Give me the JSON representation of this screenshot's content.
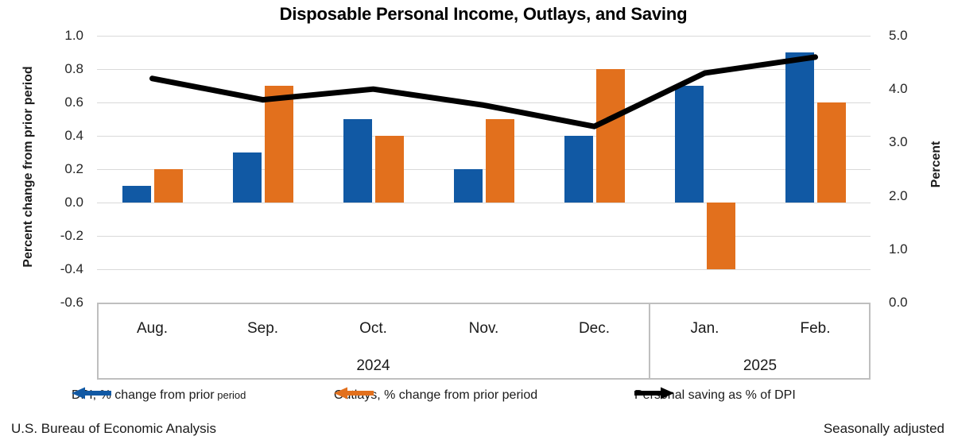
{
  "title": "Disposable Personal Income, Outlays, and Saving",
  "left_axis": {
    "title": "Percent change from prior period",
    "ticks": [
      "1.0",
      "0.8",
      "0.6",
      "0.4",
      "0.2",
      "0.0",
      "-0.2",
      "-0.4",
      "-0.6"
    ],
    "min": -0.6,
    "max": 1.0
  },
  "right_axis": {
    "title": "Percent",
    "ticks": [
      "5.0",
      "4.0",
      "3.0",
      "2.0",
      "1.0",
      "0.0"
    ],
    "min": 0.0,
    "max": 5.0
  },
  "chart_data": {
    "type": "bar+line",
    "categories": [
      "Aug.",
      "Sep.",
      "Oct.",
      "Nov.",
      "Dec.",
      "Jan.",
      "Feb."
    ],
    "year_groups": [
      {
        "label": "2024",
        "span": 5
      },
      {
        "label": "2025",
        "span": 2
      }
    ],
    "series": [
      {
        "name": "DPI, % change from prior period",
        "type": "bar",
        "axis": "left",
        "color": "#1159a4",
        "values": [
          0.1,
          0.3,
          0.5,
          0.2,
          0.4,
          0.7,
          0.9
        ]
      },
      {
        "name": "Outlays, % change from prior period",
        "type": "bar",
        "axis": "left",
        "color": "#e2701d",
        "values": [
          0.2,
          0.7,
          0.4,
          0.5,
          0.8,
          -0.4,
          0.6
        ]
      },
      {
        "name": "Personal saving as % of DPI",
        "type": "line",
        "axis": "right",
        "color": "#000000",
        "values": [
          4.2,
          3.8,
          4.0,
          3.7,
          3.3,
          4.3,
          4.6
        ]
      }
    ],
    "left_ylim": [
      -0.6,
      1.0
    ],
    "right_ylim": [
      0.0,
      5.0
    ],
    "grid": true,
    "legend_position": "bottom"
  },
  "legend": [
    {
      "label": "DPI, % change from prior",
      "label_small": "period",
      "arrow": "left",
      "color": "#1159a4"
    },
    {
      "label": "Outlays, % change from prior period",
      "label_small": "",
      "arrow": "left",
      "color": "#e2701d"
    },
    {
      "label": "Personal saving as % of DPI",
      "label_small": "",
      "arrow": "right",
      "color": "#000000"
    }
  ],
  "footer": {
    "left": "U.S. Bureau of Economic Analysis",
    "right": "Seasonally adjusted"
  },
  "colors": {
    "dpi_blue": "#1159a4",
    "outlays_orange": "#e2701d",
    "saving_line": "#000000",
    "gridline": "#d9d9d9",
    "box_border": "#bfbfbf"
  }
}
